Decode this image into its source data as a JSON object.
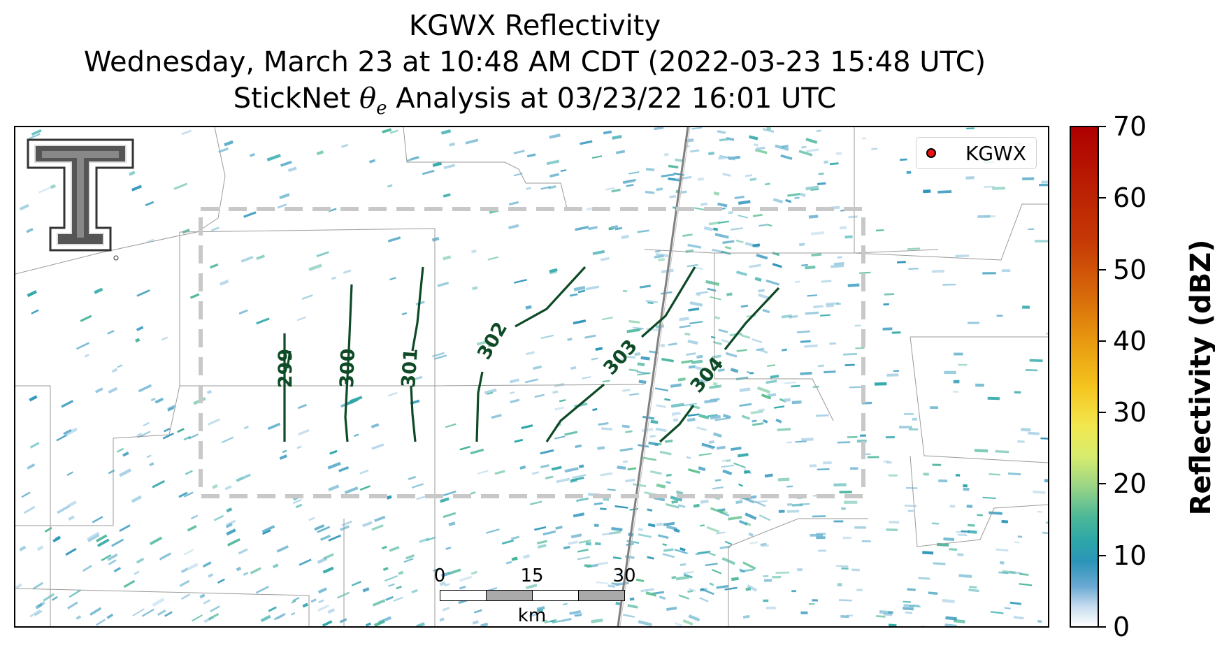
{
  "title": {
    "line1": "KGWX Reflectivity",
    "line2": "Wednesday, March 23 at 10:48 AM CDT (2022-03-23 15:48 UTC)",
    "line3_prefix": "StickNet ",
    "line3_symbol": "θ",
    "line3_subscript": "e",
    "line3_suffix": " Analysis at 03/23/22 16:01 UTC"
  },
  "legend": {
    "label": "KGWX",
    "marker_color": "#ee1111"
  },
  "colorbar": {
    "label": "Reflectivity (dBZ)",
    "ticks": [
      "0",
      "10",
      "20",
      "30",
      "40",
      "50",
      "60",
      "70"
    ],
    "colormap": [
      "#ffffff",
      "#2b94b8",
      "#9ad486",
      "#f2e850",
      "#e89a10",
      "#c63a06",
      "#ae0000"
    ]
  },
  "scale_bar": {
    "ticks": [
      "0",
      "15",
      "30"
    ],
    "unit": "km"
  },
  "contours": {
    "variable": "theta_e",
    "color": "#0d4a25",
    "labels": [
      "299",
      "300",
      "301",
      "302",
      "303",
      "304"
    ]
  },
  "domain_box": {
    "style": "dashed",
    "color": "#c8c8c8"
  },
  "logo": "texas-tech-double-t-logo"
}
